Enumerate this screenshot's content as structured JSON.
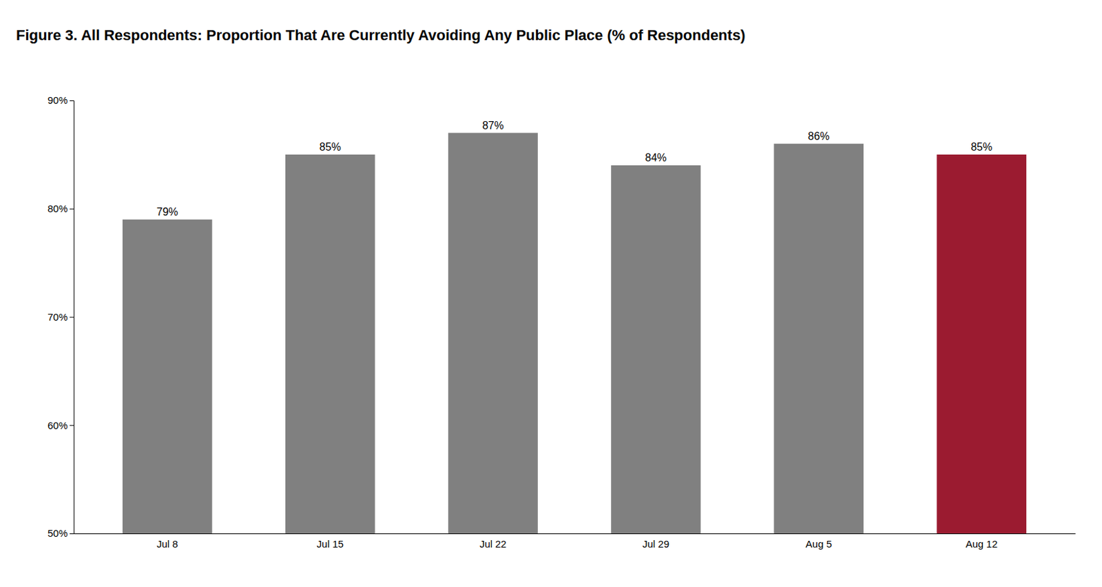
{
  "chart_data": {
    "type": "bar",
    "title": "Figure 3. All Respondents: Proportion That Are Currently Avoiding Any Public Place (% of Respondents)",
    "categories": [
      "Jul 8",
      "Jul 15",
      "Jul 22",
      "Jul 29",
      "Aug 5",
      "Aug 12"
    ],
    "values": [
      0.79,
      0.85,
      0.87,
      0.84,
      0.86,
      0.85
    ],
    "value_labels": [
      "79%",
      "85%",
      "87%",
      "84%",
      "86%",
      "85%"
    ],
    "colors": [
      "#808080",
      "#808080",
      "#808080",
      "#808080",
      "#808080",
      "#9B1B30"
    ],
    "data_labels": true,
    "ylim": [
      0.5,
      0.9
    ],
    "yticks": [
      {
        "value": 0.5,
        "label": "50%"
      },
      {
        "value": 0.6,
        "label": "60%"
      },
      {
        "value": 0.7,
        "label": "70%"
      },
      {
        "value": 0.8,
        "label": "80%"
      },
      {
        "value": 0.9,
        "label": "90%"
      }
    ],
    "grid": false
  }
}
